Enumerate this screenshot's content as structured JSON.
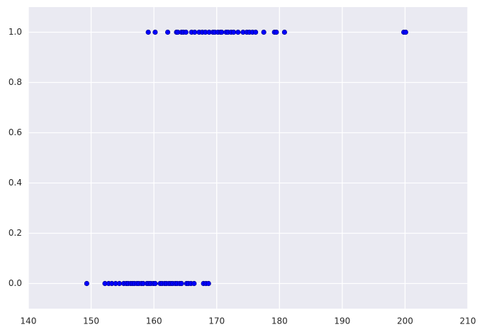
{
  "chart_data": {
    "type": "scatter",
    "x": [
      149.3,
      152.2,
      152.8,
      153.3,
      153.9,
      154.5,
      155.2,
      155.6,
      155.9,
      156.3,
      156.6,
      156.9,
      157.3,
      157.6,
      158.0,
      158.3,
      158.9,
      159.2,
      159.5,
      159.9,
      160.2,
      161.0,
      161.3,
      161.7,
      162.0,
      162.4,
      162.7,
      163.0,
      163.4,
      163.7,
      164.1,
      164.4,
      165.2,
      165.5,
      165.9,
      166.4,
      167.9,
      168.3,
      168.7,
      159.1,
      160.2,
      162.2,
      163.6,
      163.8,
      164.4,
      164.7,
      165.1,
      166.0,
      166.5,
      167.2,
      167.7,
      168.2,
      168.8,
      169.4,
      169.7,
      170.2,
      170.6,
      170.8,
      171.5,
      171.8,
      172.3,
      172.7,
      173.4,
      174.2,
      174.8,
      175.2,
      175.7,
      176.2,
      177.5,
      179.2,
      179.5,
      180.8,
      199.8,
      200.1
    ],
    "values": [
      0,
      0,
      0,
      0,
      0,
      0,
      0,
      0,
      0,
      0,
      0,
      0,
      0,
      0,
      0,
      0,
      0,
      0,
      0,
      0,
      0,
      0,
      0,
      0,
      0,
      0,
      0,
      0,
      0,
      0,
      0,
      0,
      0,
      0,
      0,
      0,
      0,
      0,
      0,
      1,
      1,
      1,
      1,
      1,
      1,
      1,
      1,
      1,
      1,
      1,
      1,
      1,
      1,
      1,
      1,
      1,
      1,
      1,
      1,
      1,
      1,
      1,
      1,
      1,
      1,
      1,
      1,
      1,
      1,
      1,
      1,
      1,
      1,
      1
    ],
    "color": "#0000ff",
    "xlim": [
      140,
      210
    ],
    "xticks": [
      140,
      150,
      160,
      170,
      180,
      190,
      200,
      210
    ],
    "ylim": [
      -0.1,
      1.1
    ],
    "yticks": [
      {
        "value": 0,
        "label": "0.0"
      },
      0.2,
      0.4,
      0.6,
      0.8,
      {
        "value": 1,
        "label": "1.0"
      }
    ],
    "grid": true
  }
}
